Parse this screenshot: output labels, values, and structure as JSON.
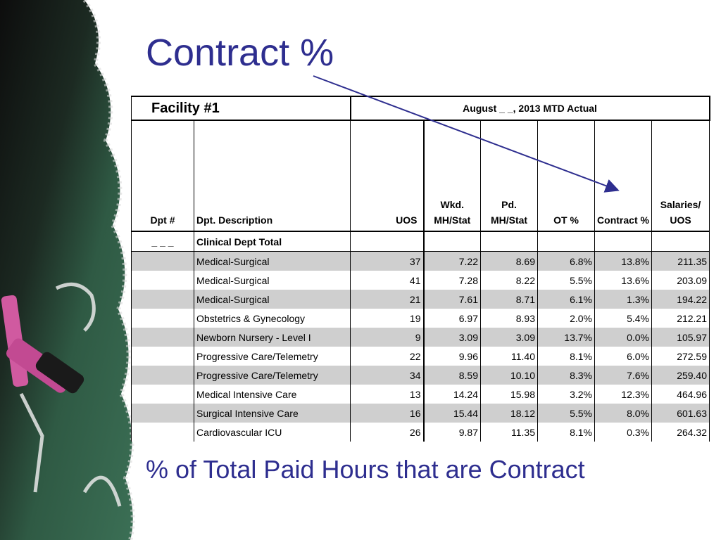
{
  "slide": {
    "title": "Contract %",
    "subtitle": "% of Total Paid Hours that are Contract"
  },
  "table": {
    "facility": "Facility #1",
    "period": "August _ _, 2013 MTD Actual",
    "columns": [
      "Dpt #",
      "Dpt. Description",
      "UOS",
      "Wkd. MH/Stat",
      "Pd. MH/Stat",
      "OT %",
      "Contract %",
      "Salaries/ UOS"
    ],
    "subtotal": {
      "dpt": "_ _ _",
      "desc": "Clinical Dept Total"
    },
    "rows": [
      {
        "desc": "Medical-Surgical",
        "uos": "37",
        "wkd": "7.22",
        "pd": "8.69",
        "ot": "6.8%",
        "contract": "13.8%",
        "sal": "211.35"
      },
      {
        "desc": "Medical-Surgical",
        "uos": "41",
        "wkd": "7.28",
        "pd": "8.22",
        "ot": "5.5%",
        "contract": "13.6%",
        "sal": "203.09"
      },
      {
        "desc": "Medical-Surgical",
        "uos": "21",
        "wkd": "7.61",
        "pd": "8.71",
        "ot": "6.1%",
        "contract": "1.3%",
        "sal": "194.22"
      },
      {
        "desc": "Obstetrics & Gynecology",
        "uos": "19",
        "wkd": "6.97",
        "pd": "8.93",
        "ot": "2.0%",
        "contract": "5.4%",
        "sal": "212.21"
      },
      {
        "desc": "Newborn Nursery - Level I",
        "uos": "9",
        "wkd": "3.09",
        "pd": "3.09",
        "ot": "13.7%",
        "contract": "0.0%",
        "sal": "105.97"
      },
      {
        "desc": "Progressive Care/Telemetry",
        "uos": "22",
        "wkd": "9.96",
        "pd": "11.40",
        "ot": "8.1%",
        "contract": "6.0%",
        "sal": "272.59"
      },
      {
        "desc": "Progressive Care/Telemetry",
        "uos": "34",
        "wkd": "8.59",
        "pd": "10.10",
        "ot": "8.3%",
        "contract": "7.6%",
        "sal": "259.40"
      },
      {
        "desc": "Medical Intensive Care",
        "uos": "13",
        "wkd": "14.24",
        "pd": "15.98",
        "ot": "3.2%",
        "contract": "12.3%",
        "sal": "464.96"
      },
      {
        "desc": "Surgical Intensive Care",
        "uos": "16",
        "wkd": "15.44",
        "pd": "18.12",
        "ot": "5.5%",
        "contract": "8.0%",
        "sal": "601.63"
      },
      {
        "desc": "Cardiovascular ICU",
        "uos": "26",
        "wkd": "9.87",
        "pd": "11.35",
        "ot": "8.1%",
        "contract": "0.3%",
        "sal": "264.32"
      }
    ]
  },
  "colors": {
    "title": "#2e2e8f",
    "arrow": "#2e2e8f",
    "row_shade": "#cfcfcf",
    "chalkboard": "#1f3a2a"
  }
}
